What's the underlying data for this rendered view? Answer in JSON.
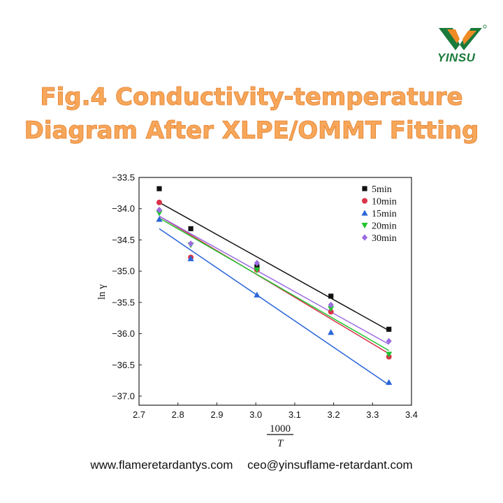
{
  "brand": {
    "name": "YINSU",
    "colors": {
      "green": "#1a7a3a",
      "orange": "#f08a24"
    }
  },
  "title": {
    "line1": "Fig.4 Conductivity-temperature",
    "line2": "Diagram After XLPE/OMMT Fitting",
    "color": "#f7a75a"
  },
  "footer": {
    "website": "www.flameretardantys.com",
    "email": "ceo@yinsuflame-retardant.com"
  },
  "chart_data": {
    "type": "scatter",
    "xlabel_numerator": "1000",
    "xlabel_denominator": "T",
    "ylabel": "ln γ",
    "xlim": [
      2.7,
      3.4
    ],
    "ylim": [
      -37.2,
      -33.5
    ],
    "xticks": [
      "2.7",
      "2.8",
      "2.9",
      "3.0",
      "3.1",
      "3.2",
      "3.3",
      "3.4"
    ],
    "yticks": [
      "-33.5",
      "-34.0",
      "-34.5",
      "-35.0",
      "-35.5",
      "-36.0",
      "-36.5",
      "-37.0"
    ],
    "grid": false,
    "legend_position": "top-right",
    "x": [
      2.752,
      2.833,
      3.003,
      3.193,
      3.342
    ],
    "series": [
      {
        "name": "5min",
        "marker": "square",
        "color": "#111111",
        "values": [
          -33.68,
          -34.32,
          -34.93,
          -35.4,
          -35.93
        ],
        "fit": [
          -33.9,
          -35.95
        ]
      },
      {
        "name": "10min",
        "marker": "circle",
        "color": "#d8344a",
        "values": [
          -33.9,
          -34.78,
          -34.98,
          -35.65,
          -36.37
        ],
        "fit": [
          -34.12,
          -36.32
        ]
      },
      {
        "name": "15min",
        "marker": "triangle-up",
        "color": "#2a66d8",
        "values": [
          -34.17,
          -34.8,
          -35.38,
          -35.98,
          -36.78
        ],
        "fit": [
          -34.32,
          -36.82
        ]
      },
      {
        "name": "20min",
        "marker": "triangle-down",
        "color": "#22c432",
        "values": [
          -34.07,
          -34.58,
          -34.98,
          -35.6,
          -36.33
        ],
        "fit": [
          -34.15,
          -36.27
        ]
      },
      {
        "name": "30min",
        "marker": "diamond",
        "color": "#9b6ce0",
        "values": [
          -34.02,
          -34.56,
          -34.87,
          -35.54,
          -36.12
        ],
        "fit": [
          -34.12,
          -36.17
        ]
      }
    ]
  }
}
